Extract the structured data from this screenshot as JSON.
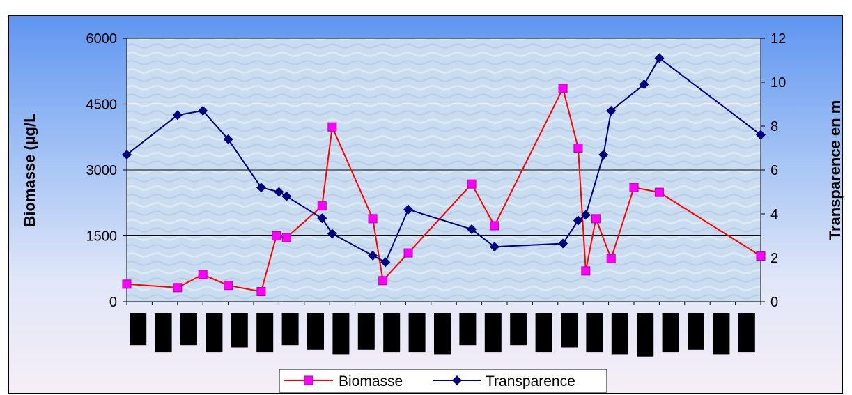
{
  "chart_data": {
    "type": "line",
    "ylabel": "Biomasse (µg/L",
    "y2label": "Transparence en m",
    "ylim": [
      0,
      6000
    ],
    "y2lim": [
      0,
      12
    ],
    "yticks": [
      "0",
      "1500",
      "3000",
      "4500",
      "6000"
    ],
    "y2ticks": [
      "0",
      "2",
      "4",
      "6",
      "8",
      "10",
      "12"
    ],
    "grid": true,
    "legend_position": "bottom-center",
    "x_tick_count": 25,
    "series": [
      {
        "name": "Biomasse",
        "axis": "left",
        "color": "#ff0000",
        "marker": "square",
        "marker_color": "#ff00ff",
        "x": [
          0,
          2.0,
          3.0,
          4.0,
          5.3,
          5.9,
          6.3,
          7.7,
          8.1,
          9.7,
          10.1,
          11.1,
          13.6,
          14.5,
          17.2,
          17.8,
          18.1,
          18.5,
          19.1,
          20.0,
          21.0,
          25.0
        ],
        "y": [
          400,
          320,
          620,
          370,
          230,
          1500,
          1460,
          2180,
          3980,
          1890,
          480,
          1110,
          2680,
          1730,
          4860,
          3500,
          700,
          1890,
          980,
          2600,
          2490,
          1040
        ]
      },
      {
        "name": "Transparence",
        "axis": "right",
        "color": "#00007f",
        "marker": "diamond",
        "marker_color": "#00007f",
        "x": [
          0,
          2.0,
          3.0,
          4.0,
          5.3,
          6.0,
          6.3,
          7.7,
          8.1,
          9.7,
          10.2,
          11.1,
          13.6,
          14.5,
          17.2,
          17.8,
          18.1,
          18.8,
          19.1,
          20.4,
          21.0,
          25.0
        ],
        "y": [
          6.7,
          8.5,
          8.7,
          7.4,
          5.2,
          5.0,
          4.8,
          3.8,
          3.1,
          2.1,
          1.8,
          4.2,
          3.3,
          2.5,
          2.65,
          3.7,
          3.95,
          6.7,
          8.7,
          9.9,
          11.1,
          7.6
        ]
      }
    ],
    "hidden_categories_bars": [
      1.4,
      1.7,
      1.4,
      1.7,
      1.5,
      1.7,
      1.4,
      1.6,
      1.8,
      1.6,
      1.7,
      1.7,
      1.8,
      1.4,
      1.7,
      1.4,
      1.7,
      1.5,
      1.7,
      1.8,
      1.9,
      1.7,
      1.6,
      1.8,
      1.7
    ]
  }
}
